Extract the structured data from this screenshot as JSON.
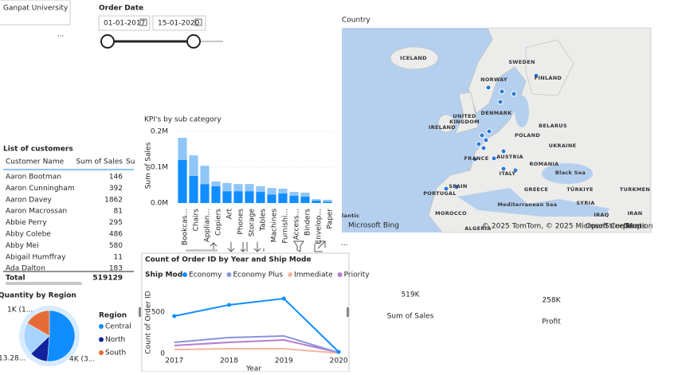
{
  "slicers": {
    "dropdown": "Ganpat University",
    "more": "...",
    "date_title": "Order Date",
    "date_from": "01-01-2017",
    "date_to": "15-01-2020"
  },
  "table": {
    "title": "List of customers",
    "columns": [
      "Customer Name",
      "Sum of Sales",
      "Su"
    ],
    "rows": [
      [
        "Aaron Bootman",
        146
      ],
      [
        "Aaron Cunningham",
        392
      ],
      [
        "Aaron Davey",
        1862
      ],
      [
        "Aaron Macrossan",
        81
      ],
      [
        "Abbie Perry",
        295
      ],
      [
        "Abby Colebe",
        486
      ],
      [
        "Abby Mei",
        580
      ],
      [
        "Abigail Humffray",
        11
      ],
      [
        "Ada Dalton",
        183
      ]
    ],
    "total": [
      "Total",
      519129
    ]
  },
  "cards": [
    {
      "value": "519K",
      "label": "Sum of Sales"
    },
    {
      "value": "258K",
      "label": "Profit"
    }
  ],
  "map": {
    "title": "Country",
    "labels": [
      "ICELAND",
      "SWEDEN",
      "FINLAND",
      "NORWAY",
      "DENMARK",
      "UNITED",
      "KINGDOM",
      "IRELAND",
      "BELARUS",
      "POLAND",
      "UKRAINE",
      "FRANCE",
      "AUSTRIA",
      "ROMANIA",
      "Black Sea",
      "ITALY",
      "SPAIN",
      "PORTUGAL",
      "GREECE",
      "TÜRKIYE",
      "TURKMEN",
      "Mediterranean Sea",
      "SYRIA",
      "MOROCCO",
      "ALGERIA",
      "IRAQ",
      "IRAN",
      "lantic"
    ],
    "attribution": "© 2025 TomTom, © 2025 Microsoft Corporation",
    "osm": "OpenStreetMap",
    "terms": "Terms",
    "bing": "Microsoft Bing"
  },
  "chart_data": [
    {
      "type": "bar",
      "stacked": true,
      "title": "KPI's by sub category",
      "y_label": "Sum of Sales",
      "categories": [
        "Bookcas...",
        "Chairs",
        "Applian...",
        "Copiers",
        "Art",
        "Phones",
        "Storage",
        "Tables",
        "Machines",
        "Furnishi...",
        "Access...",
        "Binders",
        "Envelop...",
        "Paper"
      ],
      "series": [
        {
          "color": "#118dff",
          "values": [
            120000,
            76000,
            53000,
            47000,
            33000,
            33000,
            33000,
            31000,
            24000,
            27000,
            20000,
            18000,
            7000,
            4000
          ]
        },
        {
          "color": "#8fc6f7",
          "values": [
            62000,
            57000,
            51000,
            13000,
            23000,
            20000,
            20000,
            16000,
            18000,
            13000,
            11000,
            11000,
            4000,
            5000
          ]
        }
      ],
      "ylim": [
        0,
        210000
      ],
      "yticks": [
        {
          "value": 0,
          "label": "0.0M"
        },
        {
          "value": 100000,
          "label": "0.1M"
        },
        {
          "value": 200000,
          "label": "0.2M"
        }
      ],
      "grid": true
    },
    {
      "type": "line",
      "title": "Count of Order ID by Year and Ship Mode",
      "legend_title": "Ship Mode",
      "x_label": "Year",
      "y_label": "Count of Order ID",
      "x": [
        2017,
        2018,
        2019,
        2020
      ],
      "xlim": [
        2016.8,
        2020.1
      ],
      "xticks": [
        2017,
        2018,
        2019,
        2020
      ],
      "series": [
        {
          "name": "Economy",
          "color": "#118dff",
          "markers": true,
          "values": [
            452,
            587,
            663,
            19
          ]
        },
        {
          "name": "Economy Plus",
          "color": "#8a94dc",
          "values": [
            135,
            192,
            212,
            10
          ]
        },
        {
          "name": "Immediate",
          "color": "#f4b6a0",
          "values": [
            48,
            58,
            58,
            5
          ]
        },
        {
          "name": "Priority",
          "color": "#b57dcb",
          "values": [
            96,
            135,
            163,
            12
          ]
        }
      ],
      "ylim": [
        0,
        750
      ],
      "yticks": [
        0,
        500
      ],
      "grid": false
    },
    {
      "type": "pie",
      "title": "Quantity by Region",
      "legend_title": "Region",
      "categories": [
        "Central",
        "North",
        null,
        "South"
      ],
      "values": [
        4000,
        900,
        1600,
        1300
      ],
      "colors": [
        "#118dff",
        "#12239e",
        "#a6d4ff",
        "#e66c37"
      ],
      "annotations": [
        "1K (1...",
        "13.28...",
        "4K (3..."
      ]
    }
  ]
}
